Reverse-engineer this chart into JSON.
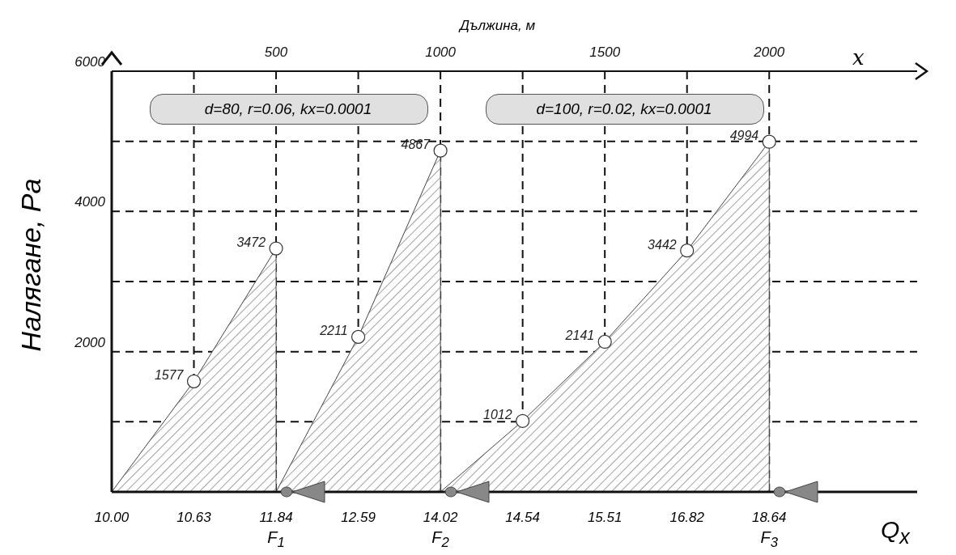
{
  "chart_data": {
    "type": "area",
    "xlabel": "Дължина, м",
    "ylabel": "Налягане, Pa",
    "xlim": [
      0,
      2450
    ],
    "xticks": [
      {
        "value": 250,
        "label": null
      },
      500,
      {
        "value": 750,
        "label": null
      },
      1000,
      {
        "value": 1250,
        "label": null
      },
      1500,
      {
        "value": 1750,
        "label": null
      },
      2000
    ],
    "ylim": [
      0,
      6000
    ],
    "yticks": [
      {
        "value": 1000,
        "label": null
      },
      2000,
      {
        "value": 3000,
        "label": null
      },
      4000,
      {
        "value": 5000,
        "label": null
      },
      6000
    ],
    "grid": true,
    "marker": "circle",
    "series": [
      {
        "color": "#444444",
        "x": [
          0,
          250,
          500,
          500
        ],
        "values": [
          0,
          1577,
          3472,
          0
        ],
        "value_labels": [
          null,
          "1577",
          "3472",
          null
        ]
      },
      {
        "color": "#444444",
        "x": [
          500,
          750,
          1000,
          1000
        ],
        "values": [
          0,
          2211,
          4867,
          0
        ],
        "value_labels": [
          null,
          "2211",
          "4867",
          null
        ]
      },
      {
        "color": "#444444",
        "x": [
          1000,
          1250,
          1500,
          1750,
          2000,
          2000
        ],
        "values": [
          0,
          1012,
          2141,
          3442,
          4994,
          0
        ],
        "value_labels": [
          null,
          "1012",
          "2141",
          "3442",
          "4994",
          null
        ]
      }
    ],
    "annotations": [
      "d=80, r=0.06, kx=0.0001",
      "d=100, r=0.02, kx=0.0001",
      "x",
      "Q$_{x}$",
      {
        "text": "10.00",
        "x": 0,
        "y": 0
      },
      {
        "text": "10.63",
        "x": 250,
        "y": 0
      },
      {
        "text": "11.84",
        "x": 500,
        "y": 0
      },
      {
        "text": "12.59",
        "x": 750,
        "y": 0
      },
      {
        "text": "14.02",
        "x": 1000,
        "y": 0
      },
      {
        "text": "14.54",
        "x": 1250,
        "y": 0
      },
      {
        "text": "15.51",
        "x": 1500,
        "y": 0
      },
      {
        "text": "16.82",
        "x": 1750,
        "y": 0
      },
      {
        "text": "18.64",
        "x": 2000,
        "y": 0
      },
      {
        "text": "F$_{1}$",
        "x": 500,
        "y": 0
      },
      {
        "text": "F$_{2}$",
        "x": 1000,
        "y": 0
      },
      {
        "text": "F$_{3}$",
        "x": 2000,
        "y": 0
      }
    ]
  }
}
